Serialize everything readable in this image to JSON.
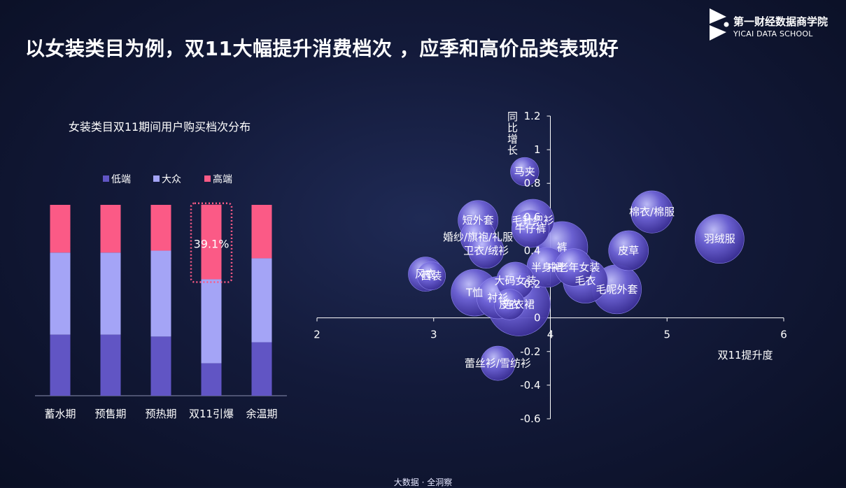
{
  "headline": "以女装类目为例，双11大幅提升消费档次 ，应季和高价品类表现好",
  "logo": {
    "name_cn": "第一财经数据商学院",
    "name_en": "YICAI DATA SCHOOL",
    "icon": "yicai-logo-icon"
  },
  "footer": "大数据 · 全洞察",
  "chart_data": [
    {
      "type": "bar",
      "stacked": true,
      "title": "女装类目双11期间用户购买档次分布",
      "categories": [
        "蓄水期",
        "预售期",
        "预热期",
        "双11引爆",
        "余温期"
      ],
      "series": [
        {
          "name": "低端",
          "color": "#6155c4",
          "values": [
            0.32,
            0.32,
            0.31,
            0.17,
            0.28
          ]
        },
        {
          "name": "大众",
          "color": "#a4a4f6",
          "values": [
            0.43,
            0.43,
            0.45,
            0.44,
            0.44
          ]
        },
        {
          "name": "高端",
          "color": "#fb5a86",
          "values": [
            0.25,
            0.25,
            0.24,
            0.391,
            0.28
          ]
        }
      ],
      "annotation": {
        "category": "双11引爆",
        "series": "高端",
        "label": "39.1%"
      },
      "legend": "top",
      "ylim": [
        0,
        1
      ]
    },
    {
      "type": "scatter",
      "bubble": true,
      "xlabel": "双11提升度",
      "ylabel": "同比增长",
      "xlim": [
        2,
        6
      ],
      "ylim": [
        -0.6,
        1.2
      ],
      "x_ticks": [
        "2",
        "3",
        "4",
        "5",
        "6"
      ],
      "y_ticks": [
        "1.2",
        "1",
        "0.8",
        "0.6",
        "0.4",
        "0.2",
        "0",
        "-0.2",
        "-0.4",
        "-0.6"
      ],
      "points": [
        {
          "label": "马夹",
          "x": 3.78,
          "y": 0.87,
          "size": 0.25
        },
        {
          "label": "毛针织衫",
          "x": 3.85,
          "y": 0.58,
          "size": 0.55
        },
        {
          "label": "短外套",
          "x": 3.38,
          "y": 0.58,
          "size": 0.5
        },
        {
          "label": "牛仔裤",
          "x": 3.83,
          "y": 0.53,
          "size": 0.45
        },
        {
          "label": "婚纱/旗袍/礼服",
          "x": 3.38,
          "y": 0.48,
          "size": 0.4
        },
        {
          "label": "棉衣/棉服",
          "x": 4.87,
          "y": 0.63,
          "size": 0.55
        },
        {
          "label": "羽绒服",
          "x": 5.45,
          "y": 0.47,
          "size": 0.7
        },
        {
          "label": "裤",
          "x": 4.1,
          "y": 0.42,
          "size": 0.75
        },
        {
          "label": "皮草",
          "x": 4.67,
          "y": 0.4,
          "size": 0.5
        },
        {
          "label": "卫衣/绒衫",
          "x": 3.45,
          "y": 0.4,
          "size": 0.4
        },
        {
          "label": "风衣",
          "x": 2.93,
          "y": 0.26,
          "size": 0.38
        },
        {
          "label": "西装",
          "x": 2.98,
          "y": 0.25,
          "size": 0.25
        },
        {
          "label": "半身裙",
          "x": 3.97,
          "y": 0.3,
          "size": 0.5
        },
        {
          "label": "中老年女装",
          "x": 4.2,
          "y": 0.3,
          "size": 0.45
        },
        {
          "label": "大码女装",
          "x": 3.7,
          "y": 0.22,
          "size": 0.45
        },
        {
          "label": "毛衣",
          "x": 4.3,
          "y": 0.22,
          "size": 0.6
        },
        {
          "label": "毛呢外套",
          "x": 4.57,
          "y": 0.17,
          "size": 0.7
        },
        {
          "label": "T恤",
          "x": 3.35,
          "y": 0.15,
          "size": 0.65
        },
        {
          "label": "衬衫",
          "x": 3.55,
          "y": 0.12,
          "size": 0.55
        },
        {
          "label": "皮衣",
          "x": 3.65,
          "y": 0.08,
          "size": 0.3
        },
        {
          "label": "连衣裙",
          "x": 3.73,
          "y": 0.08,
          "size": 1.0
        },
        {
          "label": "蕾丝衫/雪纺衫",
          "x": 3.55,
          "y": -0.27,
          "size": 0.38
        }
      ]
    }
  ]
}
